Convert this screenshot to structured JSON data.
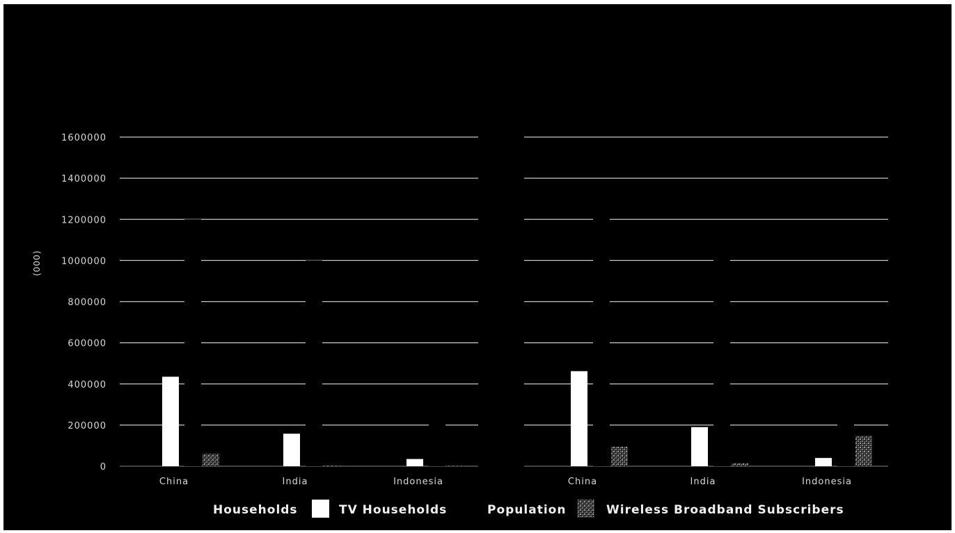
{
  "chart_data": [
    {
      "type": "bar",
      "ylabel": "(000)",
      "ylim": [
        0,
        1600000
      ],
      "yticks": [
        "0",
        "200000",
        "400000",
        "600000",
        "800000",
        "1000000",
        "1200000",
        "1400000",
        "1600000"
      ],
      "grid": true,
      "categories": [
        "China",
        "India",
        "Indonesia"
      ],
      "series": [
        {
          "name": "TV Households",
          "values": [
            435000,
            158000,
            35000
          ]
        },
        {
          "name": "Population",
          "values": [
            1200000,
            1000000,
            220000
          ]
        },
        {
          "name": "Wireless Broadband Subscribers",
          "values": [
            60000,
            5000,
            3000
          ]
        }
      ]
    },
    {
      "type": "bar",
      "ylim": [
        0,
        1600000
      ],
      "grid": true,
      "categories": [
        "China",
        "India",
        "Indonesia"
      ],
      "series": [
        {
          "name": "TV Households",
          "values": [
            462000,
            190000,
            40000
          ]
        },
        {
          "name": "Population",
          "values": [
            1250000,
            1050000,
            240000
          ]
        },
        {
          "name": "Wireless Broadband Subscribers",
          "values": [
            95000,
            15000,
            148000
          ]
        }
      ]
    }
  ],
  "legend": {
    "households": "Households",
    "tv_households": "TV Households",
    "population": "Population",
    "wireless": "Wireless Broadband Subscribers"
  },
  "colors": {
    "background": "#000000",
    "tv_households": "#ffffff",
    "population": "#000000",
    "wireless": "#555555",
    "grid": "#dddddd",
    "text": "#d9d9d9"
  }
}
